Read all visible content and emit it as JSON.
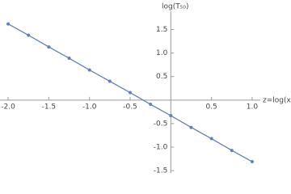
{
  "chart_data": {
    "type": "line",
    "x_label": "z=log(x)",
    "y_label": "log(T₅₀)",
    "x": [
      -2,
      -1.75,
      -1.5,
      -1.25,
      -1,
      -0.75,
      -0.5,
      -0.25,
      0,
      0.25,
      0.5,
      0.75,
      1
    ],
    "series": [
      {
        "color": "#5e81b5",
        "values": [
          1.62,
          1.38,
          1.13,
          0.89,
          0.64,
          0.4,
          0.16,
          -0.09,
          -0.33,
          -0.58,
          -0.82,
          -1.07,
          -1.31
        ]
      }
    ],
    "xlim": [
      -2.1,
      1.1
    ],
    "ylim": [
      -1.55,
      1.75
    ],
    "xticks": [
      {
        "value": -2,
        "label": "-2.0"
      },
      {
        "value": -1.5,
        "label": "-1.5"
      },
      {
        "value": -1,
        "label": "-1.0"
      },
      {
        "value": -0.5,
        "label": "-0.5"
      },
      {
        "value": 0.5,
        "label": "0.5"
      },
      {
        "value": 1,
        "label": "1.0"
      }
    ],
    "yticks": [
      {
        "value": 1.5,
        "label": "1.5"
      },
      {
        "value": 1,
        "label": "1.0"
      },
      {
        "value": 0.5,
        "label": "0.5"
      },
      {
        "value": -0.5,
        "label": "-0.5"
      },
      {
        "value": -1,
        "label": "-1.0"
      },
      {
        "value": -1.5,
        "label": "-1.5"
      }
    ],
    "grid": false
  }
}
